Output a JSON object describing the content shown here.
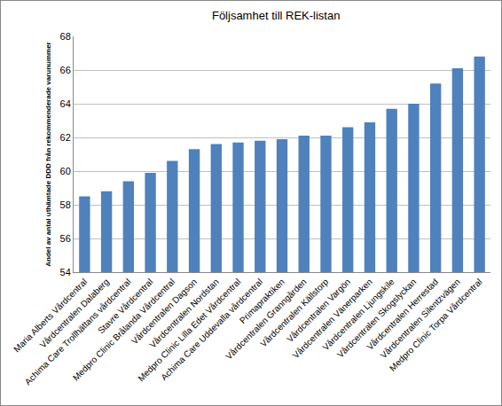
{
  "chart_data": {
    "type": "bar",
    "title": "Följsamhet till REK-listan",
    "y_label": "Andel av antal uthämtade DDD från rekommenderade varunummer",
    "categories": [
      "Maria Alberts Vårdcentral",
      "Vårdcentralen Dalaberg",
      "Achima Care Trollhättans vårdcentral",
      "Stavre Vårdcentral",
      "Medpro Clinic Brålanda Vårdcentral",
      "Vårdcentralen Dagson",
      "Vårdcentralen Nordstan",
      "Medpro Clinic Lilla Edet Vårdcentral",
      "Achima Care Uddevalla vårdcentral",
      "Primapraktiken",
      "Vårdcentralen Granngården",
      "Vårdcentralen Källstorp",
      "Vårdcentralen Vargön",
      "Vårdcentralen Vänerparken",
      "Vårdcentralen Ljungskile",
      "Vårdcentralen Skogslyckan",
      "Vårdcentralen Herrestad",
      "Vårdcentralen Silentzvägen",
      "Medpro Clinic Torpa Vårdcentral"
    ],
    "values": [
      58.5,
      58.8,
      59.4,
      59.9,
      60.6,
      61.3,
      61.6,
      61.7,
      61.8,
      61.9,
      62.1,
      62.1,
      62.6,
      62.9,
      63.7,
      64.0,
      65.2,
      66.1,
      66.8
    ],
    "color": "#4f81bd",
    "ylim": [
      54,
      68
    ],
    "yticks": [
      54,
      56,
      58,
      60,
      62,
      64,
      66,
      68
    ],
    "grid": true
  }
}
